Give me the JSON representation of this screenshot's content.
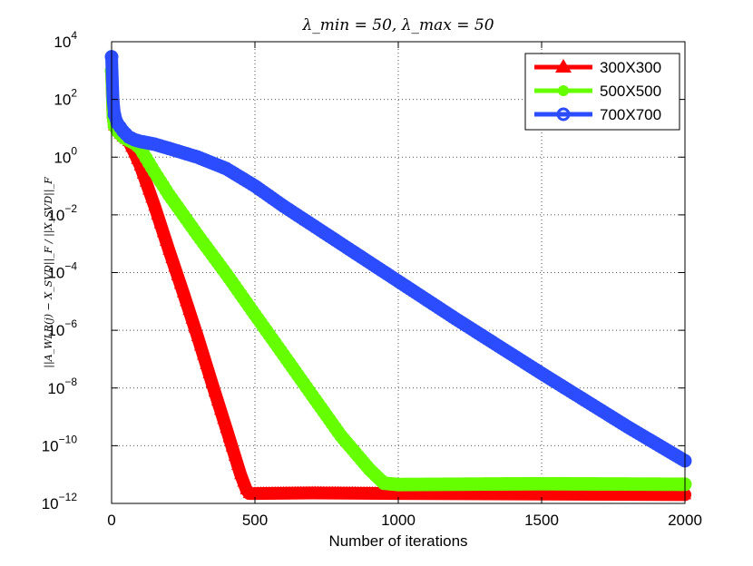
{
  "chart_data": {
    "type": "line",
    "title": "λ_min = 50, λ_max = 50",
    "xlabel": "Number of iterations",
    "ylabel": "||A_WLR(j) − X_SVD||_F / ||X_SVD||_F",
    "yscale": "log",
    "xlim": [
      0,
      2000
    ],
    "ylim": [
      1e-12,
      10000.0
    ],
    "xticks": [
      0,
      500,
      1000,
      1500,
      2000
    ],
    "xtick_labels": [
      "0",
      "500",
      "1000",
      "1500",
      "2000"
    ],
    "yticks": [
      1e-12,
      1e-10,
      1e-08,
      1e-06,
      0.0001,
      0.01,
      1.0,
      100.0,
      10000.0
    ],
    "ytick_bases": [
      "10",
      "10",
      "10",
      "10",
      "10",
      "10",
      "10",
      "10",
      "10"
    ],
    "ytick_exponents": [
      "−12",
      "−10",
      "−8",
      "−6",
      "−4",
      "−2",
      "0",
      "2",
      "4"
    ],
    "grid": true,
    "legend_position": "top-right",
    "series": [
      {
        "name": "300X300",
        "color": "#ff0000",
        "marker": "triangle",
        "x": [
          0,
          5,
          10,
          20,
          40,
          60,
          80,
          100,
          150,
          200,
          250,
          300,
          350,
          400,
          450,
          470,
          480,
          500,
          700,
          1000,
          1500,
          2000
        ],
        "y": [
          1000,
          25,
          12,
          8,
          5,
          3.5,
          1.4,
          0.5,
          0.02,
          0.0006,
          2e-05,
          6e-07,
          1.5e-08,
          4e-10,
          1e-11,
          3e-12,
          2.2e-12,
          2.2e-12,
          2.3e-12,
          2.2e-12,
          2.1e-12,
          2e-12
        ]
      },
      {
        "name": "500X500",
        "color": "#66ff00",
        "marker": "circle",
        "x": [
          0,
          5,
          10,
          20,
          40,
          60,
          80,
          100,
          150,
          200,
          300,
          400,
          500,
          600,
          700,
          800,
          900,
          950,
          1000,
          1500,
          2000
        ],
        "y": [
          1000,
          25,
          12,
          8,
          5,
          3.8,
          3,
          2,
          0.3,
          0.05,
          0.002,
          9e-05,
          3.5e-06,
          1.4e-07,
          5.5e-09,
          2.2e-10,
          1.5e-11,
          5e-12,
          4.5e-12,
          4.8e-12,
          4.6e-12
        ]
      },
      {
        "name": "700X700",
        "color": "#2b4cff",
        "marker": "circle",
        "x": [
          0,
          5,
          10,
          20,
          40,
          60,
          80,
          100,
          150,
          200,
          300,
          400,
          500,
          600,
          800,
          1000,
          1200,
          1500,
          1800,
          2000
        ],
        "y": [
          3000,
          100,
          30,
          15,
          8,
          5,
          4,
          3.5,
          2.8,
          2,
          1,
          0.4,
          0.1,
          0.02,
          0.001,
          5e-05,
          2.5e-06,
          3.2e-08,
          4.5e-10,
          3e-11
        ]
      }
    ]
  }
}
